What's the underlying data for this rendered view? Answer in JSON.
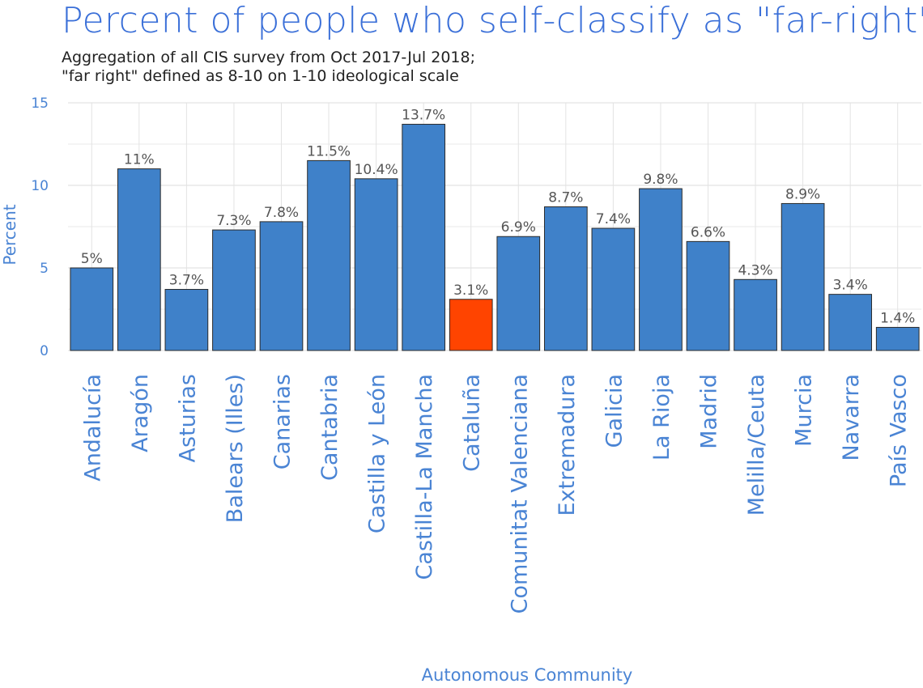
{
  "chart_data": {
    "type": "bar",
    "title": "Percent of people who self-classify as \"far-right\"",
    "subtitle_lines": [
      "Aggregation of all CIS survey from Oct 2017-Jul 2018;",
      "\"far right\" defined as 8-10 on 1-10 ideological scale"
    ],
    "xlabel": "Autonomous Community",
    "ylabel": "Percent",
    "ylim": [
      0,
      15
    ],
    "yticks": [
      0,
      5,
      10,
      15
    ],
    "grid": true,
    "categories": [
      "Andalucía",
      "Aragón",
      "Asturias",
      "Balears (Illes)",
      "Canarias",
      "Cantabria",
      "Castilla y León",
      "Castilla-La Mancha",
      "Cataluña",
      "Comunitat Valenciana",
      "Extremadura",
      "Galicia",
      "La Rioja",
      "Madrid",
      "Melilla/Ceuta",
      "Murcia",
      "Navarra",
      "País Vasco"
    ],
    "values": [
      5,
      11,
      3.7,
      7.3,
      7.8,
      11.5,
      10.4,
      13.7,
      3.1,
      6.9,
      8.7,
      7.4,
      9.8,
      6.6,
      4.3,
      8.9,
      3.4,
      1.4
    ],
    "value_labels": [
      "5%",
      "11%",
      "3.7%",
      "7.3%",
      "7.8%",
      "11.5%",
      "10.4%",
      "13.7%",
      "3.1%",
      "6.9%",
      "8.7%",
      "7.4%",
      "9.8%",
      "6.6%",
      "4.3%",
      "8.9%",
      "3.4%",
      "1.4%"
    ],
    "highlight_category": "Cataluña",
    "colors": {
      "bar": "#3f81c9",
      "highlight": "#ff4400",
      "bar_outline": "#2b2b2b",
      "title": "#3a6fd8",
      "axis_text": "#4a84d4",
      "value_label": "#555555",
      "grid": "#e3e3e3"
    }
  }
}
